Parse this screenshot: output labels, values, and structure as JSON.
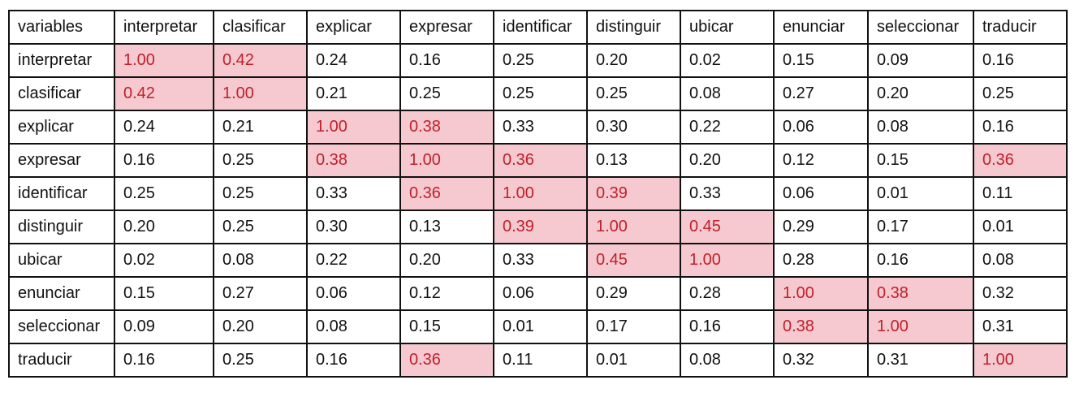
{
  "table": {
    "header": [
      "variables",
      "interpretar",
      "clasificar",
      "explicar",
      "expresar",
      "identificar",
      "distinguir",
      "ubicar",
      "enunciar",
      "seleccionar",
      "traducir"
    ],
    "rows": [
      [
        "interpretar",
        "1.00",
        "0.42",
        "0.24",
        "0.16",
        "0.25",
        "0.20",
        "0.02",
        "0.15",
        "0.09",
        "0.16"
      ],
      [
        "clasificar",
        "0.42",
        "1.00",
        "0.21",
        "0.25",
        "0.25",
        "0.25",
        "0.08",
        "0.27",
        "0.20",
        "0.25"
      ],
      [
        "explicar",
        "0.24",
        "0.21",
        "1.00",
        "0.38",
        "0.33",
        "0.30",
        "0.22",
        "0.06",
        "0.08",
        "0.16"
      ],
      [
        "expresar",
        "0.16",
        "0.25",
        "0.38",
        "1.00",
        "0.36",
        "0.13",
        "0.20",
        "0.12",
        "0.15",
        "0.36"
      ],
      [
        "identificar",
        "0.25",
        "0.25",
        "0.33",
        "0.36",
        "1.00",
        "0.39",
        "0.33",
        "0.06",
        "0.01",
        "0.11"
      ],
      [
        "distinguir",
        "0.20",
        "0.25",
        "0.30",
        "0.13",
        "0.39",
        "1.00",
        "0.45",
        "0.29",
        "0.17",
        "0.01"
      ],
      [
        "ubicar",
        "0.02",
        "0.08",
        "0.22",
        "0.20",
        "0.33",
        "0.45",
        "1.00",
        "0.28",
        "0.16",
        "0.08"
      ],
      [
        "enunciar",
        "0.15",
        "0.27",
        "0.06",
        "0.12",
        "0.06",
        "0.29",
        "0.28",
        "1.00",
        "0.38",
        "0.32"
      ],
      [
        "seleccionar",
        "0.09",
        "0.20",
        "0.08",
        "0.15",
        "0.01",
        "0.17",
        "0.16",
        "0.38",
        "1.00",
        "0.31"
      ],
      [
        "traducir",
        "0.16",
        "0.25",
        "0.16",
        "0.36",
        "0.11",
        "0.01",
        "0.08",
        "0.32",
        "0.31",
        "1.00"
      ]
    ]
  }
}
